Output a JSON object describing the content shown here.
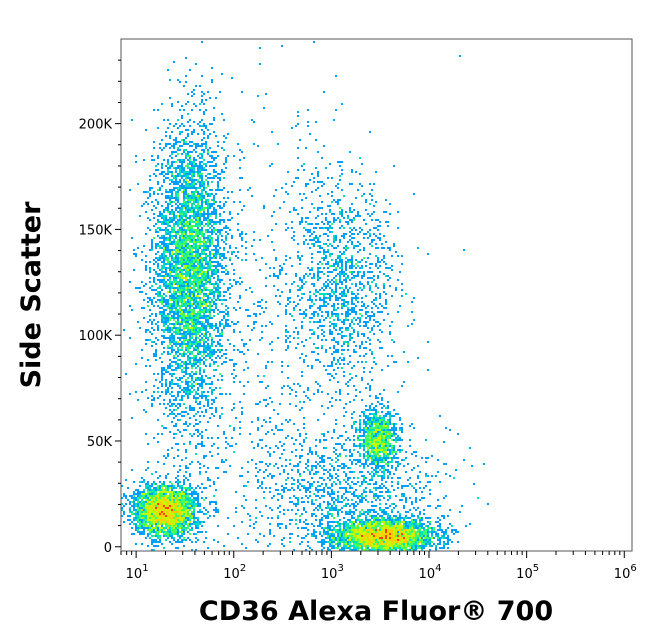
{
  "chart_data": {
    "type": "scatter",
    "title": "",
    "xlabel": "CD36 Alexa Fluor® 700",
    "ylabel": "Side Scatter",
    "x_scale": "log",
    "xlim": [
      7,
      1200000
    ],
    "ylim": [
      -2000,
      240000
    ],
    "x_ticks": [
      {
        "value": 10,
        "base": "10",
        "exp": "1"
      },
      {
        "value": 100,
        "base": "10",
        "exp": "2"
      },
      {
        "value": 1000,
        "base": "10",
        "exp": "3"
      },
      {
        "value": 10000,
        "base": "10",
        "exp": "4"
      },
      {
        "value": 100000,
        "base": "10",
        "exp": "5"
      },
      {
        "value": 1000000,
        "base": "10",
        "exp": "6"
      }
    ],
    "y_ticks": [
      {
        "value": 0,
        "label": "0"
      },
      {
        "value": 50000,
        "label": "50K"
      },
      {
        "value": 100000,
        "label": "100K"
      },
      {
        "value": 150000,
        "label": "150K"
      },
      {
        "value": 200000,
        "label": "200K"
      }
    ],
    "grid": false,
    "legend": "none",
    "colormap": [
      "#0000ff",
      "#00a0ff",
      "#00e0c0",
      "#40ff60",
      "#c0ff00",
      "#ffd000",
      "#ff4000"
    ],
    "populations": [
      {
        "x_center": 35,
        "x_log_spread": 0.18,
        "y_center": 130000,
        "y_spread": 33000,
        "count": 5200
      },
      {
        "x_center": 20,
        "x_log_spread": 0.16,
        "y_center": 17000,
        "y_spread": 6000,
        "count": 3200
      },
      {
        "x_center": 3500,
        "x_log_spread": 0.25,
        "y_center": 5000,
        "y_spread": 4000,
        "count": 3500
      },
      {
        "x_center": 3000,
        "x_log_spread": 0.1,
        "y_center": 50000,
        "y_spread": 7500,
        "count": 1100
      },
      {
        "x_center": 1300,
        "x_log_spread": 0.28,
        "y_center": 125000,
        "y_spread": 25000,
        "count": 1300
      },
      {
        "x_center": 1500,
        "x_log_spread": 0.5,
        "y_center": 25000,
        "y_spread": 15000,
        "count": 1100
      },
      {
        "x_center": 200,
        "x_log_spread": 0.6,
        "y_center": 90000,
        "y_spread": 60000,
        "count": 800
      }
    ]
  }
}
